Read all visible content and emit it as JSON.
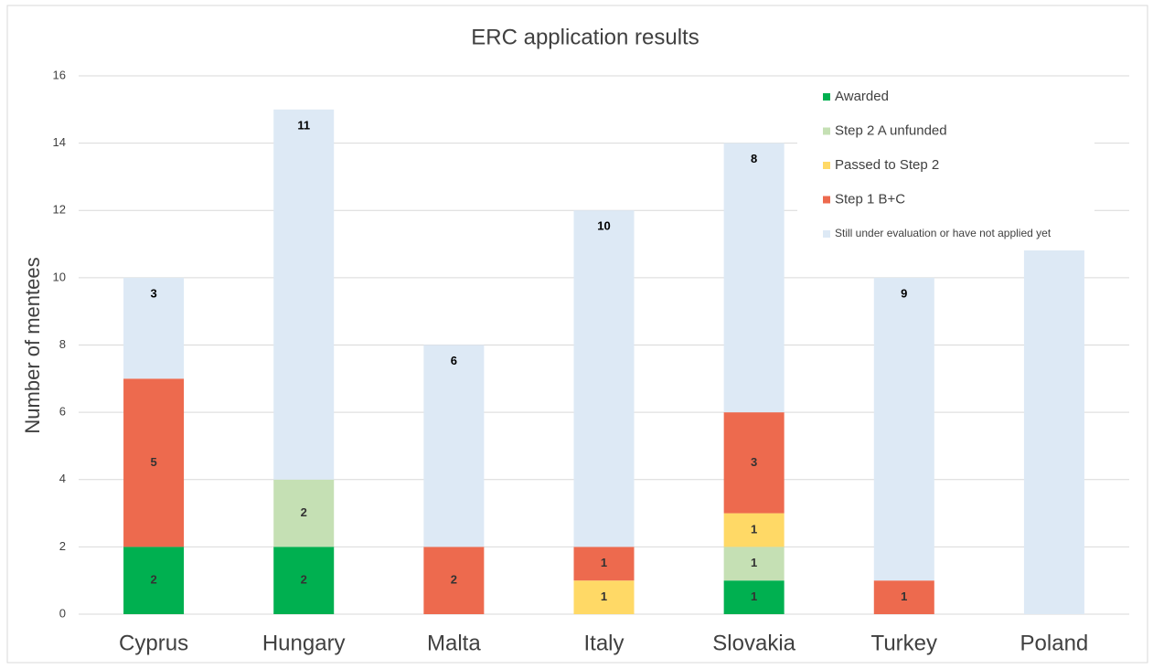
{
  "chart_data": {
    "type": "stacked_bar",
    "title": "ERC application results",
    "y_label": "Number of mentees",
    "categories": [
      "Cyprus",
      "Hungary",
      "Malta",
      "Italy",
      "Slovakia",
      "Turkey",
      "Poland"
    ],
    "series": [
      {
        "name": "Awarded",
        "color": "#00b050",
        "values": [
          2,
          2,
          0,
          0,
          1,
          0,
          0
        ]
      },
      {
        "name": "Step 2 A unfunded",
        "color": "#c5e0b4",
        "values": [
          0,
          2,
          0,
          0,
          1,
          0,
          0
        ]
      },
      {
        "name": "Passed to Step 2",
        "color": "#ffd966",
        "values": [
          0,
          0,
          0,
          1,
          1,
          0,
          0
        ]
      },
      {
        "name": "Step 1 B+C",
        "color": "#ed6a4e",
        "values": [
          5,
          0,
          2,
          1,
          3,
          1,
          0
        ]
      },
      {
        "name": "Still under evaluation or have not applied yet",
        "color": "#dde9f5",
        "values": [
          3,
          11,
          6,
          10,
          8,
          9,
          15.8
        ]
      }
    ],
    "ylim": [
      0,
      16
    ],
    "yticks": [
      0,
      2,
      4,
      6,
      8,
      10,
      12,
      14,
      16
    ],
    "grid": true,
    "legend": "top-right"
  }
}
